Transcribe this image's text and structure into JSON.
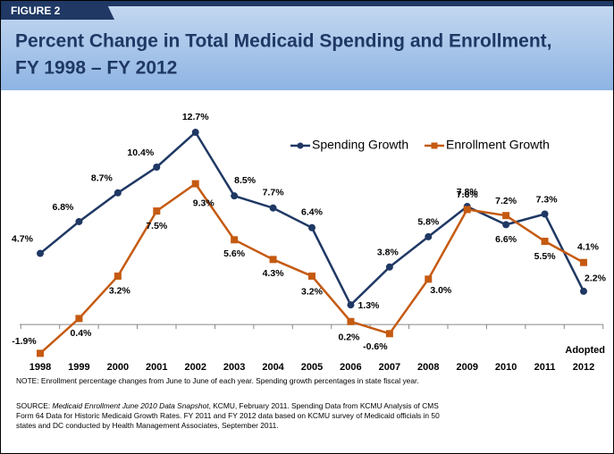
{
  "figure_label": "FIGURE 2",
  "chart_data": {
    "type": "line",
    "title": "Percent Change in Total Medicaid Spending and Enrollment, FY 1998 – FY 2012",
    "categories": [
      "1998",
      "1999",
      "2000",
      "2001",
      "2002",
      "2003",
      "2004",
      "2005",
      "2006",
      "2007",
      "2008",
      "2009",
      "2010",
      "2011",
      "2012"
    ],
    "series": [
      {
        "name": "Spending Growth",
        "color": "#1f3864",
        "marker": "circle",
        "values": [
          4.7,
          6.8,
          8.7,
          10.4,
          12.7,
          8.5,
          7.7,
          6.4,
          1.3,
          3.8,
          5.8,
          7.8,
          6.6,
          7.3,
          2.2
        ],
        "value_labels": [
          "4.7%",
          "6.8%",
          "8.7%",
          "10.4%",
          "12.7%",
          "8.5%",
          "7.7%",
          "6.4%",
          "1.3%",
          "3.8%",
          "5.8%",
          "7.8%",
          "6.6%",
          "7.3%",
          "2.2%"
        ]
      },
      {
        "name": "Enrollment Growth",
        "color": "#c55a11",
        "marker": "square",
        "values": [
          -1.9,
          0.4,
          3.2,
          7.5,
          9.3,
          5.6,
          4.3,
          3.2,
          0.2,
          -0.6,
          3.0,
          7.6,
          7.2,
          5.5,
          4.1
        ],
        "value_labels": [
          "-1.9%",
          "0.4%",
          "3.2%",
          "7.5%",
          "9.3%",
          "5.6%",
          "4.3%",
          "3.2%",
          "0.2%",
          "-0.6%",
          "3.0%",
          "7.6%",
          "7.2%",
          "5.5%",
          "4.1%"
        ]
      }
    ],
    "ylim": [
      -3,
      14
    ],
    "annotation": "Adopted",
    "legend": "top-right"
  },
  "note": "NOTE: Enrollment percentage changes from June  to June of each year.  Spending growth percentages in state fiscal year.",
  "source": {
    "label": "SOURCE: ",
    "title": "Medicaid Enrollment June 2010 Data Snapshot",
    "text": ", KCMU, February 2011. Spending Data from KCMU Analysis of CMS Form 64 Data for Historic Medicaid Growth Rates.  FY 2011 and FY 2012 data based on KCMU survey of Medicaid officials in 50 states and DC conducted by Health Management Associates, September 2011."
  }
}
